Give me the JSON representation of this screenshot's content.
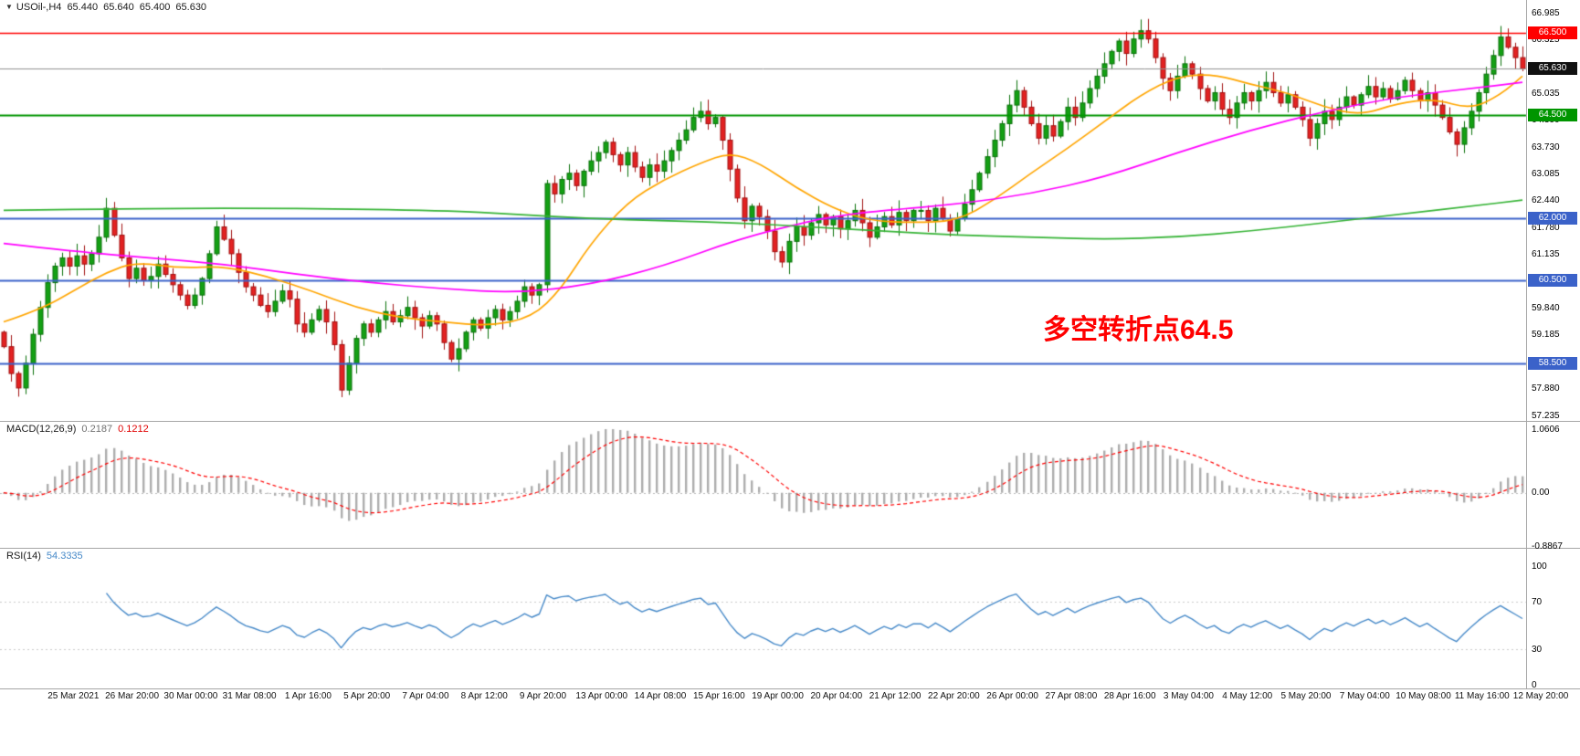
{
  "header": {
    "marker": "▼",
    "instrument": "USOil-,H4",
    "open": "65.440",
    "high": "65.640",
    "low": "65.400",
    "close": "65.630"
  },
  "annotation": {
    "text": "多空转折点64.5",
    "color": "#FF0000"
  },
  "panels": {
    "macd": {
      "label": "MACD(12,26,9)",
      "main_value": "0.2187",
      "signal_value": "0.1212"
    },
    "rsi": {
      "label": "RSI(14)",
      "value": "54.3335"
    }
  },
  "chart_data": {
    "type": "candlestick",
    "instrument": "USOil-",
    "timeframe": "H4",
    "price_range": [
      57.235,
      66.985
    ],
    "price_axis_ticks": [
      "66.985",
      "66.325",
      "65.035",
      "64.390",
      "63.730",
      "63.085",
      "62.440",
      "61.780",
      "61.135",
      "59.840",
      "59.185",
      "57.880",
      "57.235"
    ],
    "price_badges": [
      {
        "value": "66.500",
        "color": "#ff0000"
      },
      {
        "value": "65.630",
        "color": "#111111"
      },
      {
        "value": "64.500",
        "color": "#009500"
      },
      {
        "value": "62.000",
        "color": "#3b62c9"
      },
      {
        "value": "60.500",
        "color": "#3b62c9"
      },
      {
        "value": "58.500",
        "color": "#3b62c9"
      }
    ],
    "x_labels": [
      "25 Mar 2021",
      "26 Mar 20:00",
      "30 Mar 00:00",
      "31 Mar 08:00",
      "1 Apr 16:00",
      "5 Apr 20:00",
      "7 Apr 04:00",
      "8 Apr 12:00",
      "9 Apr 20:00",
      "13 Apr 00:00",
      "14 Apr 08:00",
      "15 Apr 16:00",
      "19 Apr 00:00",
      "20 Apr 04:00",
      "21 Apr 12:00",
      "22 Apr 20:00",
      "26 Apr 00:00",
      "27 Apr 08:00",
      "28 Apr 16:00",
      "3 May 04:00",
      "4 May 12:00",
      "5 May 20:00",
      "7 May 04:00",
      "10 May 08:00",
      "11 May 16:00",
      "12 May 20:00"
    ],
    "closes": [
      58.9,
      58.25,
      57.9,
      58.5,
      59.2,
      59.85,
      60.45,
      60.85,
      61.05,
      60.85,
      61.1,
      60.9,
      61.15,
      61.55,
      62.25,
      61.6,
      61.05,
      60.55,
      60.8,
      60.5,
      60.6,
      60.9,
      60.65,
      60.4,
      60.15,
      59.9,
      60.15,
      60.55,
      61.15,
      61.8,
      61.5,
      61.15,
      60.7,
      60.35,
      60.15,
      59.9,
      59.75,
      60.0,
      60.25,
      60.05,
      59.45,
      59.25,
      59.55,
      59.8,
      59.5,
      58.95,
      57.85,
      58.5,
      59.1,
      59.45,
      59.25,
      59.55,
      59.75,
      59.5,
      59.65,
      59.85,
      59.6,
      59.4,
      59.65,
      59.45,
      59.0,
      58.6,
      58.85,
      59.25,
      59.55,
      59.35,
      59.6,
      59.8,
      59.55,
      59.75,
      60.0,
      60.35,
      60.15,
      60.4,
      62.85,
      62.6,
      62.95,
      63.1,
      62.8,
      63.15,
      63.4,
      63.6,
      63.85,
      63.55,
      63.3,
      63.6,
      63.25,
      63.0,
      63.3,
      63.15,
      63.4,
      63.65,
      63.9,
      64.15,
      64.45,
      64.6,
      64.3,
      64.45,
      63.9,
      63.2,
      62.5,
      61.95,
      62.3,
      62.05,
      61.7,
      61.2,
      60.95,
      61.45,
      61.8,
      61.6,
      61.9,
      62.1,
      61.85,
      62.05,
      61.75,
      61.95,
      62.2,
      61.9,
      61.55,
      61.8,
      62.05,
      61.85,
      62.15,
      61.95,
      62.2,
      62.2,
      61.95,
      62.25,
      62.0,
      61.7,
      62.0,
      62.35,
      62.7,
      63.1,
      63.5,
      63.9,
      64.3,
      64.75,
      65.1,
      64.7,
      64.3,
      63.95,
      64.25,
      64.0,
      64.35,
      64.7,
      64.45,
      64.8,
      65.15,
      65.45,
      65.75,
      66.05,
      66.3,
      66.0,
      66.35,
      66.55,
      66.35,
      65.9,
      65.4,
      65.1,
      65.45,
      65.75,
      65.5,
      65.15,
      64.85,
      65.05,
      64.65,
      64.45,
      64.8,
      65.05,
      64.85,
      65.1,
      65.3,
      65.05,
      64.8,
      65.0,
      64.7,
      64.4,
      63.95,
      64.3,
      64.6,
      64.4,
      64.7,
      64.95,
      64.75,
      65.0,
      65.2,
      64.95,
      65.15,
      64.9,
      65.1,
      65.35,
      65.1,
      64.85,
      65.05,
      64.75,
      64.45,
      64.1,
      63.8,
      64.2,
      64.6,
      65.05,
      65.5,
      65.95,
      66.4,
      66.15,
      65.9,
      65.63
    ],
    "up_color": "#14a014",
    "up_border": "#0a700a",
    "down_color": "#e32222",
    "down_border": "#a01010",
    "levels": [
      {
        "price": 66.5,
        "color": "#ff0000",
        "width": 1.5
      },
      {
        "price": 64.5,
        "color": "#009500",
        "width": 2
      },
      {
        "price": 62.0,
        "color": "#3b62c9",
        "width": 2
      },
      {
        "price": 60.5,
        "color": "#3b62c9",
        "width": 2
      },
      {
        "price": 58.5,
        "color": "#3b62c9",
        "width": 2
      }
    ],
    "current_price": 65.63,
    "current_price_line_color": "#909090",
    "moving_averages": [
      {
        "name": "fast-ma",
        "color": "#ffa500",
        "points": [
          [
            0,
            59.5
          ],
          [
            5,
            59.8
          ],
          [
            10,
            60.3
          ],
          [
            14,
            60.7
          ],
          [
            18,
            60.95
          ],
          [
            24,
            60.8
          ],
          [
            30,
            60.85
          ],
          [
            36,
            60.6
          ],
          [
            42,
            60.25
          ],
          [
            48,
            59.85
          ],
          [
            54,
            59.6
          ],
          [
            60,
            59.5
          ],
          [
            66,
            59.4
          ],
          [
            72,
            59.6
          ],
          [
            76,
            60.3
          ],
          [
            80,
            61.4
          ],
          [
            85,
            62.4
          ],
          [
            90,
            62.95
          ],
          [
            95,
            63.35
          ],
          [
            99,
            63.6
          ],
          [
            103,
            63.35
          ],
          [
            108,
            62.75
          ],
          [
            113,
            62.25
          ],
          [
            118,
            61.95
          ],
          [
            124,
            61.9
          ],
          [
            130,
            61.95
          ],
          [
            135,
            62.45
          ],
          [
            140,
            63.1
          ],
          [
            145,
            63.7
          ],
          [
            150,
            64.35
          ],
          [
            155,
            65.0
          ],
          [
            160,
            65.45
          ],
          [
            165,
            65.5
          ],
          [
            170,
            65.25
          ],
          [
            175,
            65.05
          ],
          [
            180,
            64.7
          ],
          [
            185,
            64.5
          ],
          [
            190,
            64.8
          ],
          [
            195,
            64.9
          ],
          [
            200,
            64.65
          ],
          [
            204,
            65.0
          ],
          [
            207,
            65.45
          ]
        ]
      },
      {
        "name": "medium-ma",
        "color": "#ff00ff",
        "points": [
          [
            0,
            61.4
          ],
          [
            10,
            61.2
          ],
          [
            20,
            61.05
          ],
          [
            30,
            60.9
          ],
          [
            40,
            60.65
          ],
          [
            50,
            60.45
          ],
          [
            60,
            60.3
          ],
          [
            70,
            60.2
          ],
          [
            80,
            60.4
          ],
          [
            90,
            60.85
          ],
          [
            100,
            61.5
          ],
          [
            110,
            61.95
          ],
          [
            115,
            62.1
          ],
          [
            120,
            62.2
          ],
          [
            130,
            62.35
          ],
          [
            140,
            62.6
          ],
          [
            150,
            63.0
          ],
          [
            160,
            63.6
          ],
          [
            170,
            64.15
          ],
          [
            180,
            64.6
          ],
          [
            190,
            64.95
          ],
          [
            200,
            65.15
          ],
          [
            207,
            65.3
          ]
        ]
      },
      {
        "name": "slow-ma",
        "color": "#35b335",
        "points": [
          [
            0,
            62.2
          ],
          [
            20,
            62.25
          ],
          [
            40,
            62.25
          ],
          [
            60,
            62.2
          ],
          [
            70,
            62.1
          ],
          [
            80,
            62.0
          ],
          [
            90,
            61.95
          ],
          [
            100,
            61.9
          ],
          [
            110,
            61.8
          ],
          [
            120,
            61.7
          ],
          [
            130,
            61.6
          ],
          [
            140,
            61.55
          ],
          [
            150,
            61.5
          ],
          [
            160,
            61.55
          ],
          [
            170,
            61.7
          ],
          [
            180,
            61.9
          ],
          [
            190,
            62.1
          ],
          [
            200,
            62.3
          ],
          [
            207,
            62.45
          ]
        ]
      }
    ],
    "macd": {
      "fast": 12,
      "slow": 26,
      "signal_period": 9,
      "axis_labels": [
        "1.0606",
        "0.00",
        "-0.8867"
      ],
      "axis_max": 1.0606,
      "axis_min": -0.8867,
      "histogram_color": "#adadad",
      "signal_color": "#ff0000",
      "current_main": 0.2187,
      "current_signal": 0.1212
    },
    "rsi": {
      "period": 14,
      "color": "#4689c8",
      "axis_labels": [
        100,
        70,
        30,
        0
      ],
      "level_lines": [
        70,
        30
      ],
      "current": 54.3335
    }
  }
}
